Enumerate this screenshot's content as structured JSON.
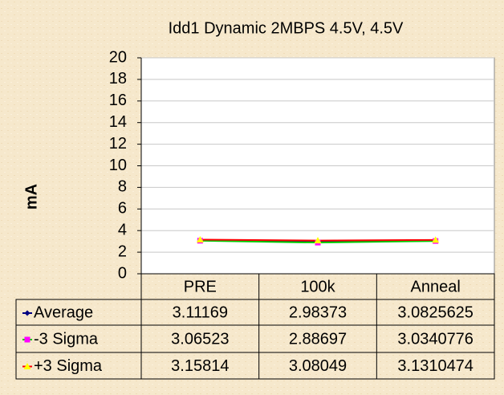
{
  "chart_data": {
    "type": "line",
    "title": "Idd1 Dynamic 2MBPS 4.5V, 4.5V",
    "y_label": "mA",
    "categories": [
      "PRE",
      "100k",
      "Anneal"
    ],
    "series": [
      {
        "name": "Average",
        "color": "#000080",
        "marker_color": "#000080",
        "marker": "diamond",
        "values": [
          3.11169,
          2.98373,
          3.0825625
        ]
      },
      {
        "name": "-3 Sigma",
        "color": "#00cc00",
        "marker_color": "#ff00ff",
        "marker": "square",
        "values": [
          3.06523,
          2.88697,
          3.0340776
        ]
      },
      {
        "name": "+3 Sigma",
        "color": "#ff0000",
        "marker_color": "#ffff00",
        "marker": "triangle",
        "values": [
          3.15814,
          3.08049,
          3.1310474
        ]
      }
    ],
    "ylim": [
      0,
      20
    ],
    "yticks": [
      0,
      2,
      4,
      6,
      8,
      10,
      12,
      14,
      16,
      18,
      20
    ],
    "grid": true
  }
}
